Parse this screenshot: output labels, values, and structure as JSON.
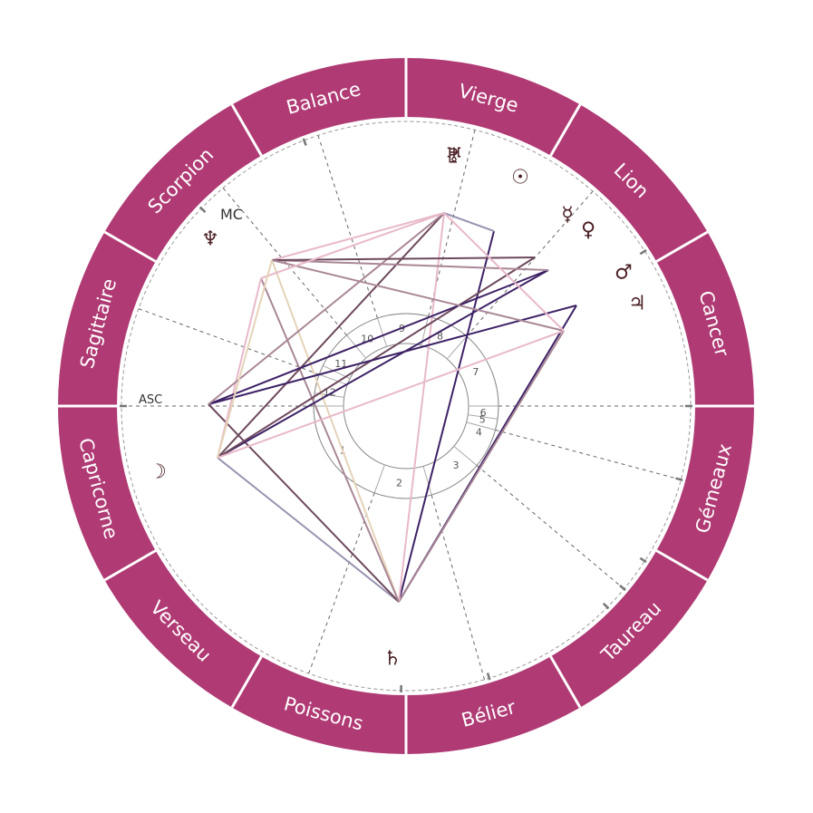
{
  "colors": {
    "ring": "#b03a74",
    "ring_divider": "#ffffff",
    "sign_text": "#ffffff",
    "cusp_line": "#666666",
    "glyph": "#4a1f24",
    "aspect_palette": [
      "#3d2266",
      "#6e4a5e",
      "#a98796",
      "#e8b9ca",
      "#e5d3b8",
      "#9892b0"
    ]
  },
  "zodiac_signs": [
    {
      "name": "Bélier",
      "icon": "aries"
    },
    {
      "name": "Taureau",
      "icon": "taurus"
    },
    {
      "name": "Gémeaux",
      "icon": "gemini"
    },
    {
      "name": "Cancer",
      "icon": "cancer"
    },
    {
      "name": "Lion",
      "icon": "leo"
    },
    {
      "name": "Vierge",
      "icon": "virgo"
    },
    {
      "name": "Balance",
      "icon": "libra"
    },
    {
      "name": "Scorpion",
      "icon": "scorpio"
    },
    {
      "name": "Sagittaire",
      "icon": "sagittarius"
    },
    {
      "name": "Capricorne",
      "icon": "capricorn"
    },
    {
      "name": "Verseau",
      "icon": "aquarius"
    },
    {
      "name": "Poissons",
      "icon": "pisces"
    }
  ],
  "axes": {
    "asc_label": "ASC",
    "mc_label": "MC"
  },
  "houses": [
    "1",
    "2",
    "3",
    "4",
    "5",
    "6",
    "7",
    "8",
    "9",
    "10",
    "11",
    "12"
  ],
  "planets": [
    {
      "name": "sun",
      "glyph": "☉"
    },
    {
      "name": "moon",
      "glyph": "☽"
    },
    {
      "name": "mercury",
      "glyph": "☿"
    },
    {
      "name": "venus",
      "glyph": "♀"
    },
    {
      "name": "mars",
      "glyph": "♂"
    },
    {
      "name": "jupiter",
      "glyph": "♃"
    },
    {
      "name": "saturn",
      "glyph": "♄"
    },
    {
      "name": "uranus",
      "glyph": "♅"
    },
    {
      "name": "neptune",
      "glyph": "♆"
    },
    {
      "name": "pluto",
      "glyph": "♇"
    }
  ]
}
